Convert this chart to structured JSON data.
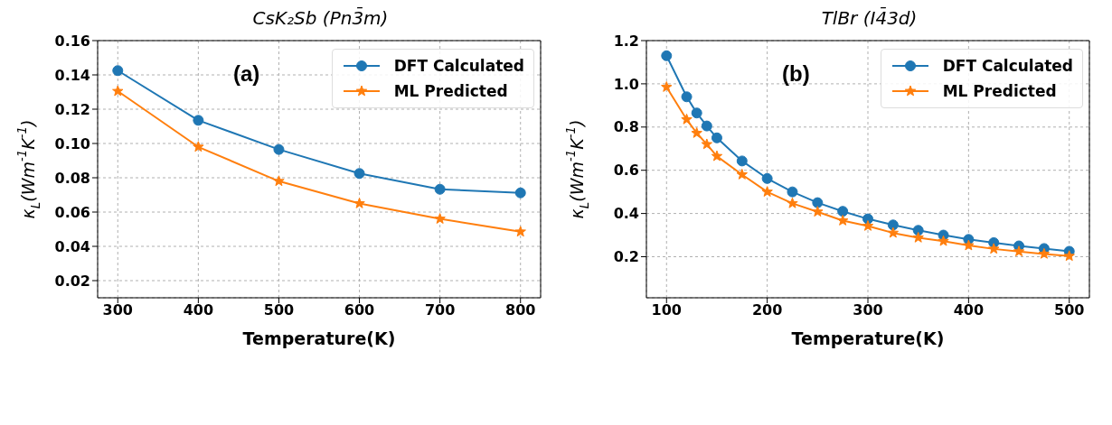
{
  "chart_data": [
    {
      "type": "line",
      "title": "CsK₂Sb (Pn3̄m)",
      "xlabel": "Temperature(K)",
      "ylabel": "κ$_{L}$(Wm$^{-1}$K$^{-1}$)",
      "annotations": [
        "(a)"
      ],
      "x": [
        300,
        400,
        500,
        600,
        700,
        800
      ],
      "series": [
        {
          "name": "DFT Calculated",
          "color": "#1f77b4",
          "marker": "circle",
          "values": [
            0.1425,
            0.1135,
            0.0965,
            0.0825,
            0.0733,
            0.0712
          ]
        },
        {
          "name": "ML Predicted",
          "color": "#ff7f0e",
          "marker": "star",
          "values": [
            0.1305,
            0.098,
            0.078,
            0.065,
            0.056,
            0.0485
          ]
        }
      ],
      "xlim": [
        275,
        825
      ],
      "xticks": [
        300,
        400,
        500,
        600,
        700,
        800
      ],
      "ylim": [
        0.01,
        0.16
      ],
      "yticks": [
        {
          "value": 0.02,
          "label": "0.02"
        },
        {
          "value": 0.04,
          "label": "0.04"
        },
        {
          "value": 0.06,
          "label": "0.06"
        },
        {
          "value": 0.08,
          "label": "0.08"
        },
        {
          "value": 0.1,
          "label": "0.10"
        },
        {
          "value": 0.12,
          "label": "0.12"
        },
        {
          "value": 0.14,
          "label": "0.14"
        },
        {
          "value": 0.16,
          "label": "0.16"
        }
      ],
      "grid": true,
      "legend": "top right",
      "line_style": "solid"
    },
    {
      "type": "line",
      "title": "TlBr (I4̄3d)",
      "xlabel": "Temperature(K)",
      "ylabel": "κ$_{L}$(Wm$^{-1}$K$^{-1}$)",
      "annotations": [
        "(b)"
      ],
      "x": [
        100,
        120,
        130,
        140,
        150,
        175,
        200,
        225,
        250,
        275,
        300,
        325,
        350,
        375,
        400,
        425,
        450,
        475,
        500
      ],
      "series": [
        {
          "name": "DFT Calculated",
          "color": "#1f77b4",
          "marker": "circle",
          "values": [
            1.13,
            0.94,
            0.865,
            0.805,
            0.75,
            0.643,
            0.562,
            0.5,
            0.45,
            0.41,
            0.375,
            0.347,
            0.322,
            0.3,
            0.28,
            0.265,
            0.25,
            0.238,
            0.225
          ]
        },
        {
          "name": "ML Predicted",
          "color": "#ff7f0e",
          "marker": "star",
          "values": [
            0.985,
            0.835,
            0.772,
            0.72,
            0.665,
            0.58,
            0.5,
            0.447,
            0.408,
            0.367,
            0.342,
            0.31,
            0.288,
            0.272,
            0.252,
            0.236,
            0.224,
            0.213,
            0.203
          ]
        }
      ],
      "xlim": [
        80,
        520
      ],
      "xticks": [
        100,
        200,
        300,
        400,
        500
      ],
      "ylim": [
        0.01,
        1.2
      ],
      "yticks": [
        0.2,
        0.4,
        0.6,
        0.8,
        {
          "value": 1,
          "label": "1.0"
        },
        1.2
      ],
      "grid": true,
      "legend": "top right",
      "line_style": "solid"
    }
  ]
}
